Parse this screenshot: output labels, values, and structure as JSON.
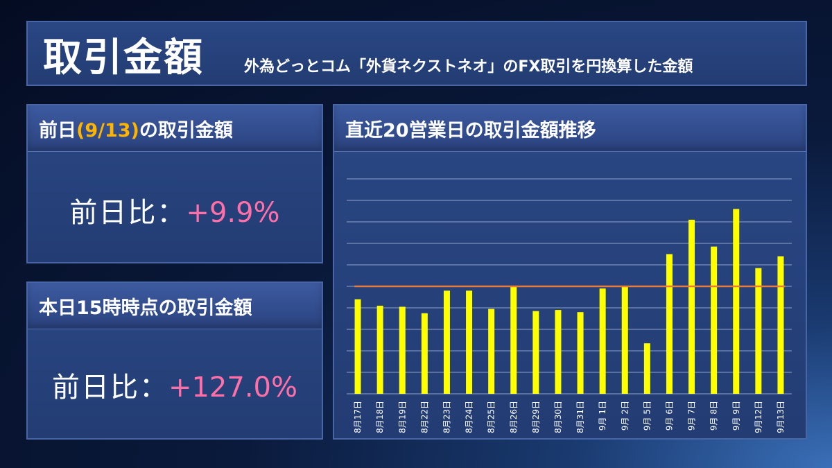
{
  "header": {
    "title": "取引金額",
    "subtitle": "外為どっとコム「外貨ネクストネオ」のFX取引を円換算した金額"
  },
  "prev_day_card": {
    "title_pre": "前日",
    "title_date": "(9/13)",
    "title_post": "の取引金額",
    "label": "前日比：",
    "value": "+9.9%"
  },
  "today_card": {
    "title": "本日15時時点の取引金額",
    "label": "前日比：",
    "value": "+127.0%"
  },
  "colors": {
    "bar": "#ffff00",
    "reference_line": "#e87a3a",
    "gridline": "#8ea2cc",
    "highlight_date": "#ffb400",
    "positive_value": "#ff6fa8"
  },
  "chart_data": {
    "type": "bar",
    "title": "直近20営業日の取引金額推移",
    "categories": [
      "8月17日",
      "8月18日",
      "8月19日",
      "8月22日",
      "8月23日",
      "8月24日",
      "8月25日",
      "8月26日",
      "8月29日",
      "8月30日",
      "8月31日",
      "9月 1日",
      "9月 2日",
      "9月 5日",
      "9月 6日",
      "9月 7日",
      "9月 8日",
      "9月 9日",
      "9月12日",
      "9月13日"
    ],
    "values": [
      4.4,
      4.1,
      4.05,
      3.75,
      4.8,
      4.8,
      3.95,
      5.0,
      3.85,
      3.9,
      3.8,
      4.9,
      5.0,
      2.35,
      6.5,
      8.1,
      6.85,
      8.6,
      5.85,
      6.4
    ],
    "reference_line": 5.0,
    "ylim": [
      0,
      10
    ],
    "grid": true,
    "xlabel": "",
    "ylabel": ""
  }
}
